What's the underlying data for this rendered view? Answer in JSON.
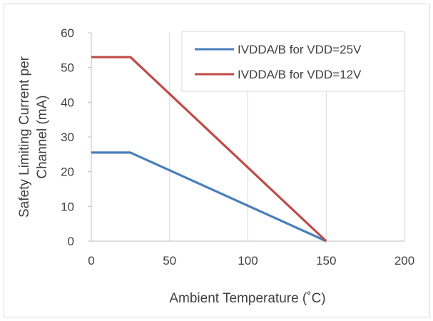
{
  "chart_data": {
    "type": "line",
    "xlabel": "Ambient Temperature (˚C)",
    "ylabel_lines": [
      "Safety Limiting Current per",
      "Channel (mA)"
    ],
    "xlim": [
      0,
      200
    ],
    "ylim": [
      0,
      60
    ],
    "x_ticks": [
      0,
      50,
      100,
      150,
      200
    ],
    "y_ticks": [
      0,
      10,
      20,
      30,
      40,
      50,
      60
    ],
    "grid": "vertical",
    "legend_position": "top-right",
    "series": [
      {
        "name": "IVDDA/B for VDD=25V",
        "color": "#4a7ebb",
        "x": [
          0,
          25,
          150
        ],
        "y": [
          25.5,
          25.5,
          0
        ]
      },
      {
        "name": "IVDDA/B for VDD=12V",
        "color": "#be4b48",
        "x": [
          0,
          25,
          150
        ],
        "y": [
          53,
          53,
          0
        ]
      }
    ]
  }
}
